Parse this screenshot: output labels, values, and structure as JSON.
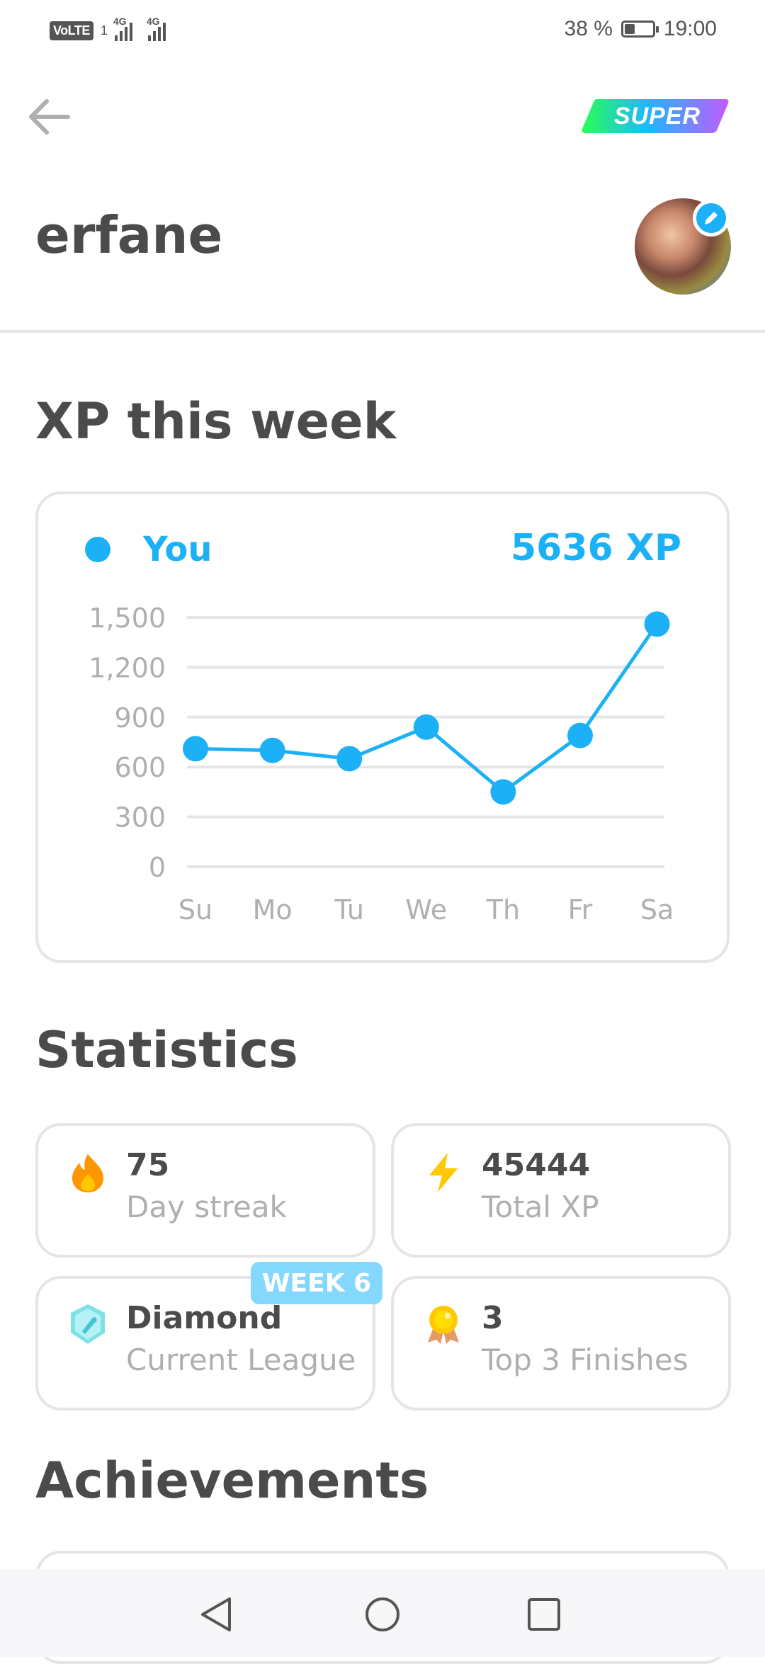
{
  "status_bar": {
    "volte": "VoLTE",
    "sim_label": "1",
    "net1": "4G",
    "net2": "4G",
    "battery_text": "38 %",
    "battery_level": 0.38,
    "time": "19:00"
  },
  "header": {
    "back_icon": "arrow-left-icon",
    "badge_text": "SUPER",
    "username": "erfane",
    "edit_icon": "pencil-icon"
  },
  "xp_section": {
    "title": "XP this week",
    "legend_name": "You",
    "total": "5636 XP",
    "accent_color": "#1cb0f6"
  },
  "chart_data": {
    "type": "line",
    "categories": [
      "Su",
      "Mo",
      "Tu",
      "We",
      "Th",
      "Fr",
      "Sa"
    ],
    "yticks": [
      "1,500",
      "1,200",
      "900",
      "600",
      "300",
      "0"
    ],
    "ylim": [
      0,
      1500
    ],
    "grid": true,
    "series": [
      {
        "name": "You",
        "values": [
          710,
          700,
          650,
          840,
          450,
          790,
          1460
        ]
      }
    ]
  },
  "statistics": {
    "title": "Statistics",
    "cards": [
      {
        "icon": "fire-icon",
        "value": "75",
        "label": "Day streak"
      },
      {
        "icon": "lightning-icon",
        "value": "45444",
        "label": "Total XP"
      },
      {
        "icon": "diamond-league-icon",
        "value": "Diamond",
        "label": "Current League",
        "badge": "WEEK 6"
      },
      {
        "icon": "medal-icon",
        "value": "3",
        "label": "Top 3 Finishes"
      }
    ]
  },
  "achievements": {
    "title": "Achievements"
  },
  "nav": {
    "back": "nav-back-icon",
    "home": "nav-home-icon",
    "recents": "nav-recents-icon"
  }
}
